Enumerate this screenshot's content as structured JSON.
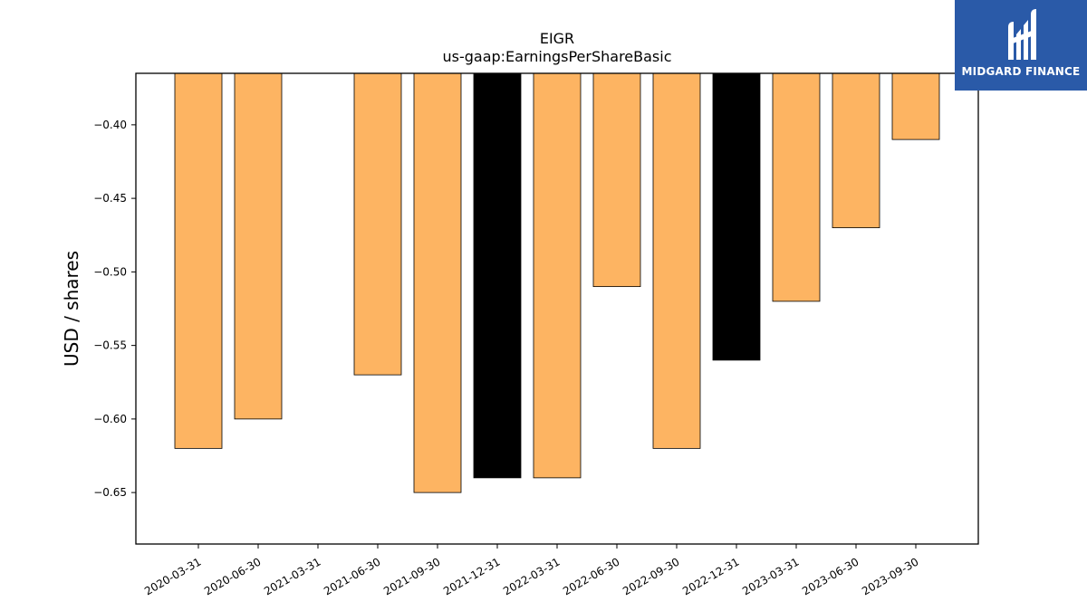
{
  "chart_data": {
    "type": "bar",
    "title": "EIGR",
    "subtitle": "us-gaap:EarningsPerShareBasic",
    "xlabel": "",
    "ylabel": "USD / shares",
    "ylim": [
      -0.685,
      -0.365
    ],
    "yticks": [
      -0.4,
      -0.45,
      -0.5,
      -0.55,
      -0.6,
      -0.65
    ],
    "ytick_labels": [
      "−0.40",
      "−0.45",
      "−0.50",
      "−0.55",
      "−0.60",
      "−0.65"
    ],
    "grid": false,
    "categories": [
      "2020-03-31",
      "2020-06-30",
      "2021-03-31",
      "2021-06-30",
      "2021-09-30",
      "2021-12-31",
      "2022-03-31",
      "2022-06-30",
      "2022-09-30",
      "2022-12-31",
      "2023-03-31",
      "2023-06-30",
      "2023-09-30"
    ],
    "values": [
      -0.62,
      -0.6,
      null,
      -0.57,
      -0.65,
      -0.64,
      -0.64,
      -0.51,
      -0.62,
      -0.56,
      -0.52,
      -0.47,
      -0.41
    ],
    "bar_colors": [
      "#fdb462",
      "#fdb462",
      null,
      "#fdb462",
      "#fdb462",
      "#000000",
      "#fdb462",
      "#fdb462",
      "#fdb462",
      "#000000",
      "#fdb462",
      "#fdb462",
      "#fdb462"
    ],
    "colors": {
      "quarter": "#fdb462",
      "year_end": "#000000",
      "edge": "#000000"
    }
  },
  "logo": {
    "text": "MIDGARD FINANCE",
    "background": "#2a5aa8"
  }
}
